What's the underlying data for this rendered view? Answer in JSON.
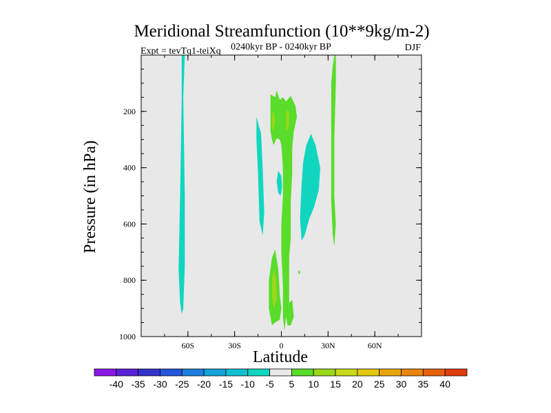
{
  "chart_data": {
    "type": "contour",
    "title": "Meridional Streamfunction (10**9kg/m-2)",
    "subtitle_left": "Expt = tevTq1-teiXq",
    "subtitle_center": "0240kyr BP - 0240kyr BP",
    "subtitle_right": "DJF",
    "xlabel": "Latitude",
    "ylabel": "Pressure (in hPa)",
    "xlim": [
      -90,
      90
    ],
    "ylim": [
      1000,
      0
    ],
    "x_ticks": [
      {
        "value": -60,
        "label": "60S"
      },
      {
        "value": -30,
        "label": "30S"
      },
      {
        "value": 0,
        "label": "0"
      },
      {
        "value": 30,
        "label": "30N"
      },
      {
        "value": 60,
        "label": "60N"
      }
    ],
    "y_ticks": [
      {
        "value": 200,
        "label": "200"
      },
      {
        "value": 400,
        "label": "400"
      },
      {
        "value": 600,
        "label": "600"
      },
      {
        "value": 800,
        "label": "800"
      },
      {
        "value": 1000,
        "label": "1000"
      }
    ],
    "background_color": "#e8e8e8",
    "colorbar": {
      "levels": [
        "-40",
        "-35",
        "-30",
        "-25",
        "-20",
        "-15",
        "-10",
        "-5",
        "5",
        "10",
        "15",
        "20",
        "25",
        "30",
        "35",
        "40"
      ],
      "colors": [
        "#8a16e8",
        "#5a1fd8",
        "#3333cc",
        "#2255dd",
        "#1e7fe0",
        "#12a3d8",
        "#10bfd2",
        "#10d6c0",
        "#e8e8e8",
        "#5adc2a",
        "#9ad81a",
        "#c8d81a",
        "#e2c80f",
        "#e8a60c",
        "#e8840c",
        "#e8600c",
        "#e23c0c"
      ]
    },
    "regions": [
      {
        "name": "region-far-south-negative",
        "level": "-10 to -5",
        "color": "#10d6c0",
        "outline": [
          [
            -64,
            0
          ],
          [
            -62,
            0
          ],
          [
            -63,
            150
          ],
          [
            -62,
            500
          ],
          [
            -62,
            750
          ],
          [
            -63,
            900
          ],
          [
            -64,
            920
          ],
          [
            -65,
            880
          ],
          [
            -66,
            760
          ],
          [
            -65,
            500
          ],
          [
            -64,
            150
          ]
        ]
      },
      {
        "name": "region-south-tropics-negative",
        "level": "-10 to -5",
        "color": "#10d6c0",
        "outline": [
          [
            -16,
            220
          ],
          [
            -13,
            280
          ],
          [
            -12,
            400
          ],
          [
            -11,
            560
          ],
          [
            -12,
            640
          ],
          [
            -14,
            590
          ],
          [
            -15,
            420
          ],
          [
            -16,
            300
          ]
        ]
      },
      {
        "name": "region-equator-small-negative",
        "level": "-10 to -5",
        "color": "#10d6c0",
        "outline": [
          [
            -2,
            410
          ],
          [
            0,
            430
          ],
          [
            0.5,
            470
          ],
          [
            -0.5,
            500
          ],
          [
            -2,
            490
          ],
          [
            -3,
            450
          ]
        ]
      },
      {
        "name": "region-north-tropics-negative",
        "level": "-10 to -5",
        "color": "#10d6c0",
        "outline": [
          [
            19,
            280
          ],
          [
            22,
            320
          ],
          [
            25,
            400
          ],
          [
            24,
            480
          ],
          [
            21,
            540
          ],
          [
            18,
            580
          ],
          [
            15,
            640
          ],
          [
            13,
            660
          ],
          [
            12,
            580
          ],
          [
            13,
            460
          ],
          [
            14,
            380
          ],
          [
            16,
            320
          ]
        ]
      },
      {
        "name": "region-upper-positive-5",
        "level": "5 to 10",
        "color": "#5adc2a",
        "outline": [
          [
            -7,
            140
          ],
          [
            -4,
            150
          ],
          [
            -3,
            125
          ],
          [
            -1,
            160
          ],
          [
            1,
            150
          ],
          [
            3,
            165
          ],
          [
            6,
            145
          ],
          [
            9,
            180
          ],
          [
            10,
            220
          ],
          [
            8,
            270
          ],
          [
            7,
            330
          ],
          [
            7,
            420
          ],
          [
            6,
            520
          ],
          [
            6,
            650
          ],
          [
            5,
            720
          ],
          [
            5,
            800
          ],
          [
            5,
            900
          ],
          [
            6,
            960
          ],
          [
            4,
            960
          ],
          [
            3,
            930
          ],
          [
            2,
            980
          ],
          [
            1,
            930
          ],
          [
            1,
            820
          ],
          [
            0,
            700
          ],
          [
            0,
            600
          ],
          [
            1,
            500
          ],
          [
            1,
            400
          ],
          [
            0,
            320
          ],
          [
            -1,
            300
          ],
          [
            -3,
            295
          ],
          [
            -5,
            320
          ],
          [
            -6,
            300
          ],
          [
            -7,
            270
          ],
          [
            -7,
            220
          ]
        ]
      },
      {
        "name": "region-upper-positive-10-left",
        "level": "10 to 15",
        "color": "#9ad81a",
        "outline": [
          [
            -6,
            210
          ],
          [
            -5,
            200
          ],
          [
            -4,
            230
          ],
          [
            -5,
            270
          ],
          [
            -6,
            260
          ]
        ]
      },
      {
        "name": "region-upper-positive-10-right",
        "level": "10 to 15",
        "color": "#9ad81a",
        "outline": [
          [
            3,
            210
          ],
          [
            4,
            190
          ],
          [
            5,
            210
          ],
          [
            5,
            240
          ],
          [
            4,
            270
          ],
          [
            3,
            260
          ]
        ]
      },
      {
        "name": "region-lower-positive-5",
        "level": "5 to 10",
        "color": "#5adc2a",
        "outline": [
          [
            -6,
            720
          ],
          [
            -4,
            690
          ],
          [
            -2,
            760
          ],
          [
            -1,
            850
          ],
          [
            0,
            900
          ],
          [
            -1,
            940
          ],
          [
            -4,
            950
          ],
          [
            -6,
            960
          ],
          [
            -8,
            900
          ],
          [
            -8,
            800
          ],
          [
            -7,
            760
          ]
        ]
      },
      {
        "name": "region-lower-positive-10",
        "level": "10 to 15",
        "color": "#9ad81a",
        "outline": [
          [
            -5,
            760
          ],
          [
            -3,
            800
          ],
          [
            -3,
            870
          ],
          [
            -5,
            900
          ],
          [
            -6,
            860
          ],
          [
            -6,
            800
          ]
        ]
      },
      {
        "name": "region-lower-right-positive-5",
        "level": "5 to 10",
        "color": "#5adc2a",
        "outline": [
          [
            5,
            880
          ],
          [
            7,
            870
          ],
          [
            8,
            930
          ],
          [
            6,
            960
          ],
          [
            5,
            930
          ]
        ]
      },
      {
        "name": "region-north-positive-5",
        "level": "5 to 10",
        "color": "#5adc2a",
        "outline": [
          [
            34,
            0
          ],
          [
            35,
            0
          ],
          [
            35,
            100
          ],
          [
            34,
            300
          ],
          [
            34,
            500
          ],
          [
            35,
            600
          ],
          [
            34,
            680
          ],
          [
            33,
            640
          ],
          [
            32,
            520
          ],
          [
            32,
            400
          ],
          [
            32,
            250
          ],
          [
            32,
            100
          ],
          [
            33,
            40
          ]
        ]
      },
      {
        "name": "region-speck",
        "level": "5 to 10",
        "color": "#5adc2a",
        "outline": [
          [
            11,
            765
          ],
          [
            12,
            768
          ],
          [
            12,
            775
          ],
          [
            11,
            778
          ]
        ]
      }
    ]
  }
}
